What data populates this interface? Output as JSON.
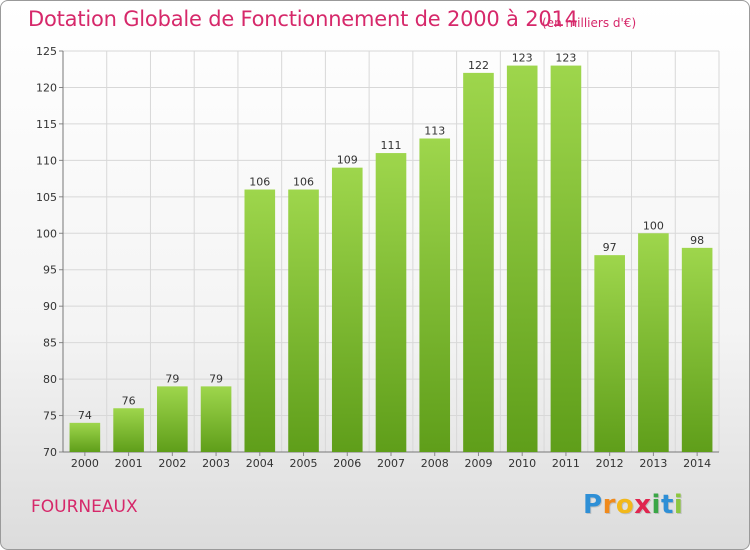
{
  "header": {
    "title": "Dotation Globale de Fonctionnement de 2000 à 2014",
    "unit": "(en milliers d'€)"
  },
  "footer": {
    "commune": "FOURNEAUX",
    "logo": "Proxiti"
  },
  "colors": {
    "title": "#d6286a",
    "bar_light": "#9ed64c",
    "bar_dark": "#5f9e1a"
  },
  "chart_data": {
    "type": "bar",
    "title": "Dotation Globale de Fonctionnement de 2000 à 2014",
    "subtitle": "(en milliers d'€)",
    "xlabel": "",
    "ylabel": "",
    "categories": [
      "2000",
      "2001",
      "2002",
      "2003",
      "2004",
      "2005",
      "2006",
      "2007",
      "2008",
      "2009",
      "2010",
      "2011",
      "2012",
      "2013",
      "2014"
    ],
    "values": [
      74,
      76,
      79,
      79,
      106,
      106,
      109,
      111,
      113,
      122,
      123,
      123,
      97,
      100,
      98
    ],
    "ylim": [
      70,
      125
    ],
    "yticks": [
      70,
      75,
      80,
      85,
      90,
      95,
      100,
      105,
      110,
      115,
      120,
      125
    ],
    "grid": true,
    "legend": "none"
  }
}
